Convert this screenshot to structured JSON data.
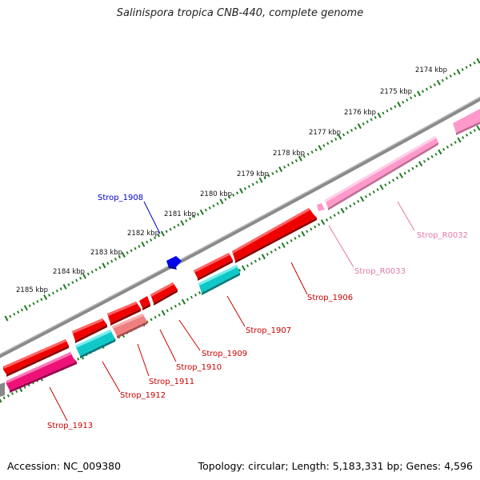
{
  "title": "Salinispora tropica CNB-440, complete genome",
  "footer": {
    "accession": "Accession: NC_009380",
    "summary": "Topology: circular; Length: 5,183,331 bp; Genes: 4,596"
  },
  "colors": {
    "backbone": "#888888",
    "tick_major": "#1d7a1d",
    "tick_minor": "#1d7a1d",
    "gene_red": "#ee0000",
    "gene_cyan": "#11c8c8",
    "gene_salmon": "#f08080",
    "gene_magenta": "#ee1177",
    "gene_pink": "#ff99cc",
    "gene_blue": "#0000ee",
    "label_red": "#cc0000",
    "label_pink": "#e07aa8",
    "label_blue": "#0000cc"
  },
  "kbp_labels": [
    "2174 kbp",
    "2175 kbp",
    "2176 kbp",
    "2177 kbp",
    "2178 kbp",
    "2179 kbp",
    "2180 kbp",
    "2181 kbp",
    "2182 kbp",
    "2183 kbp",
    "2184 kbp",
    "2185 kbp"
  ],
  "gene_labels": [
    {
      "id": "Strop_1908",
      "color": "blue"
    },
    {
      "id": "Strop_R0032",
      "color": "pink"
    },
    {
      "id": "Strop_R0033",
      "color": "pink"
    },
    {
      "id": "Strop_1906",
      "color": "red"
    },
    {
      "id": "Strop_1907",
      "color": "red"
    },
    {
      "id": "Strop_1909",
      "color": "red"
    },
    {
      "id": "Strop_1910",
      "color": "red"
    },
    {
      "id": "Strop_1911",
      "color": "red"
    },
    {
      "id": "Strop_1912",
      "color": "red"
    },
    {
      "id": "Strop_1913",
      "color": "red"
    }
  ]
}
